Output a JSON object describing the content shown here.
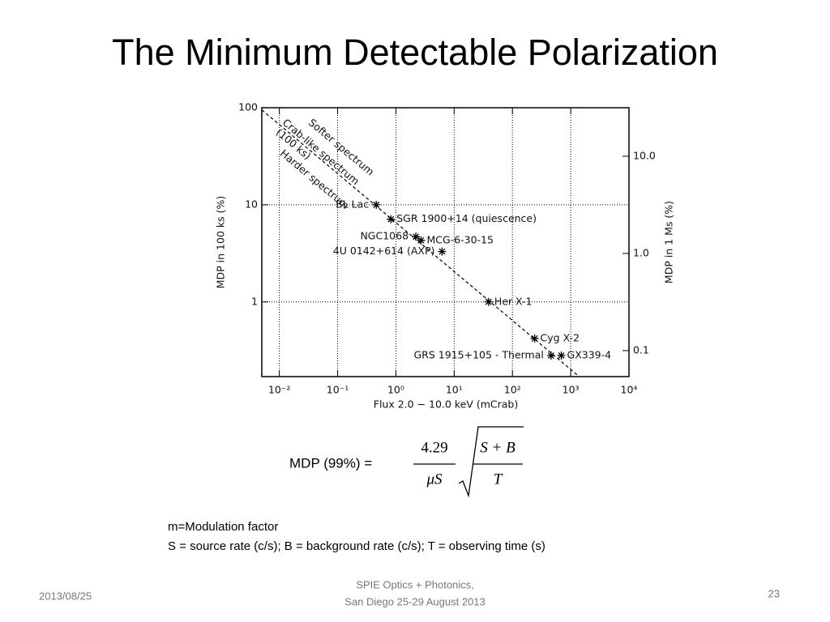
{
  "title": "The Minimum Detectable Polarization",
  "chart_data": {
    "type": "scatter",
    "xlabel": "Flux 2.0 − 10.0 keV (mCrab)",
    "ylabel": "MDP in 100 ks (%)",
    "y2label": "MDP in 1 Ms (%)",
    "xlog": true,
    "ylog": true,
    "grid": true,
    "xlim": [
      0.005,
      10000
    ],
    "xticks": [
      {
        "value": 0.01,
        "label": "10⁻²"
      },
      {
        "value": 0.1,
        "label": "10⁻¹"
      },
      {
        "value": 1,
        "label": "10⁰"
      },
      {
        "value": 10,
        "label": "10¹"
      },
      {
        "value": 100,
        "label": "10²"
      },
      {
        "value": 1000,
        "label": "10³"
      },
      {
        "value": 10000,
        "label": "10⁴"
      }
    ],
    "ylim": [
      0.17,
      100
    ],
    "yticks": [
      1,
      10,
      100
    ],
    "y2lim": [
      0.054,
      31.6
    ],
    "y2ticks": [
      0.1,
      {
        "value": 1,
        "label": "1.0"
      },
      {
        "value": 10,
        "label": "10.0"
      }
    ],
    "color": "#000000",
    "points": [
      {
        "label": "BL Lac",
        "x": 0.46,
        "y": 10
      },
      {
        "label": "SGR 1900+14 (quiescence)",
        "x": 0.82,
        "y": 7.1
      },
      {
        "label": "NGC1068",
        "x": 2.2,
        "y": 4.7
      },
      {
        "label": "MCG-6-30-15",
        "x": 2.7,
        "y": 4.3
      },
      {
        "label": "4U 0142+614 (AXP)",
        "x": 6.2,
        "y": 3.3
      },
      {
        "label": "Her X-1",
        "x": 39,
        "y": 1.0
      },
      {
        "label": "Cyg X-2",
        "x": 240,
        "y": 0.42
      },
      {
        "label": "GRS 1915+105 - Thermal",
        "x": 460,
        "y": 0.28
      },
      {
        "label": "GX339-4",
        "x": 690,
        "y": 0.28
      }
    ],
    "line": {
      "x": [
        0.005,
        1400
      ],
      "y": [
        95,
        0.17
      ]
    },
    "annotations": [
      "Softer spectrum",
      "Crab-like spectrum",
      "(100 ks)",
      "Harder spectrum"
    ]
  },
  "formula": {
    "lhs": "MDP (99%) =",
    "numerator": "4.29",
    "denominator": "μS",
    "root_numerator": "S + B",
    "root_denominator": "T"
  },
  "notes": [
    "m=Modulation factor",
    "S = source rate (c/s); B = background rate  (c/s); T = observing time (s)"
  ],
  "footer": {
    "date": "2013/08/25",
    "event": [
      "SPIE Optics + Photonics,",
      "San Diego 25-29 August 2013"
    ],
    "page": "23"
  }
}
